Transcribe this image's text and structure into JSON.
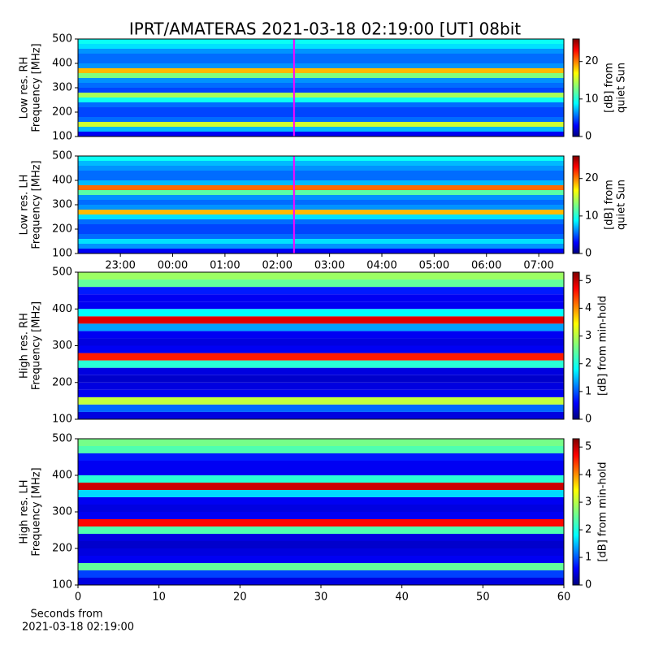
{
  "chart_data": [
    {
      "type": "heatmap",
      "title": "IPRT/AMATERAS 2021-03-18 02:19:00 [UT]   08bit",
      "ylabel": [
        "Low res. RH",
        "Frequency [MHz]"
      ],
      "ylim": [
        100,
        500
      ],
      "yticks": [
        100,
        200,
        300,
        400,
        500
      ],
      "xlim": [
        -1.81,
        7.48
      ],
      "y_bins": [
        100,
        120,
        140,
        160,
        180,
        200,
        220,
        240,
        260,
        280,
        300,
        320,
        340,
        360,
        380,
        400,
        420,
        440,
        460,
        480,
        500
      ],
      "values": [
        3,
        8,
        15,
        6,
        5,
        5,
        6,
        10,
        14,
        5,
        6,
        7,
        13,
        18,
        7,
        6,
        6,
        7,
        9,
        10
      ],
      "clim": [
        0,
        26
      ],
      "cticks": [
        0,
        10,
        20
      ],
      "clabel": [
        "[dB] from",
        "quiet Sun"
      ],
      "vline": 2.32,
      "vline_color": "#ff00ff"
    },
    {
      "type": "heatmap",
      "ylabel": [
        "Low res. LH",
        "Frequency [MHz]"
      ],
      "ylim": [
        100,
        500
      ],
      "yticks": [
        100,
        200,
        300,
        400,
        500
      ],
      "xlim": [
        -1.81,
        7.48
      ],
      "xticks": [
        {
          "value": -1,
          "label": "23:00"
        },
        {
          "value": 0,
          "label": "00:00"
        },
        {
          "value": 1,
          "label": "01:00"
        },
        {
          "value": 2,
          "label": "02:00"
        },
        {
          "value": 3,
          "label": "03:00"
        },
        {
          "value": 4,
          "label": "04:00"
        },
        {
          "value": 5,
          "label": "05:00"
        },
        {
          "value": 6,
          "label": "06:00"
        },
        {
          "value": 7,
          "label": "07:00"
        }
      ],
      "y_bins": [
        100,
        120,
        140,
        160,
        180,
        200,
        220,
        240,
        260,
        280,
        300,
        320,
        340,
        360,
        380,
        400,
        420,
        440,
        460,
        480,
        500
      ],
      "values": [
        3,
        7,
        9,
        6,
        5,
        5,
        6,
        9,
        18,
        7,
        6,
        7,
        12,
        20,
        8,
        6,
        6,
        7,
        8,
        10
      ],
      "clim": [
        0,
        26
      ],
      "cticks": [
        0,
        10,
        20
      ],
      "clabel": [
        "[dB] from",
        "quiet Sun"
      ],
      "vline": 2.32,
      "vline_color": "#ff00ff"
    },
    {
      "type": "heatmap",
      "ylabel": [
        "High res. RH",
        "Frequency [MHz]"
      ],
      "ylim": [
        100,
        500
      ],
      "yticks": [
        100,
        200,
        300,
        400,
        500
      ],
      "xlim": [
        0,
        60
      ],
      "y_bins": [
        100,
        120,
        140,
        160,
        180,
        200,
        220,
        240,
        260,
        280,
        300,
        320,
        340,
        360,
        380,
        400,
        420,
        440,
        460,
        480,
        500
      ],
      "values": [
        0.5,
        1.2,
        3,
        0.6,
        0.5,
        0.4,
        0.5,
        2.2,
        4.5,
        0.6,
        0.5,
        0.6,
        1.5,
        4.8,
        2,
        0.6,
        0.6,
        0.8,
        2.5,
        2.8
      ],
      "clim": [
        0,
        5.3
      ],
      "cticks": [
        0,
        1,
        2,
        3,
        4,
        5
      ],
      "clabel": [
        "[dB] from min-hold"
      ]
    },
    {
      "type": "heatmap",
      "ylabel": [
        "High res. LH",
        "Frequency [MHz]"
      ],
      "ylim": [
        100,
        500
      ],
      "yticks": [
        100,
        200,
        300,
        400,
        500
      ],
      "xlim": [
        0,
        60
      ],
      "xticks": [
        0,
        10,
        20,
        30,
        40,
        50,
        60
      ],
      "xlabel": [
        "Seconds from",
        "2021-03-18 02:19:00"
      ],
      "y_bins": [
        100,
        120,
        140,
        160,
        180,
        200,
        220,
        240,
        260,
        280,
        300,
        320,
        340,
        360,
        380,
        400,
        420,
        440,
        460,
        480,
        500
      ],
      "values": [
        0.5,
        1,
        2.5,
        0.6,
        0.5,
        0.4,
        0.5,
        2.4,
        4.6,
        0.6,
        0.5,
        0.6,
        1.8,
        4.9,
        2.2,
        0.6,
        0.6,
        0.8,
        2.4,
        2.6
      ],
      "clim": [
        0,
        5.3
      ],
      "cticks": [
        0,
        1,
        2,
        3,
        4,
        5
      ],
      "clabel": [
        "[dB] from min-hold"
      ]
    }
  ]
}
